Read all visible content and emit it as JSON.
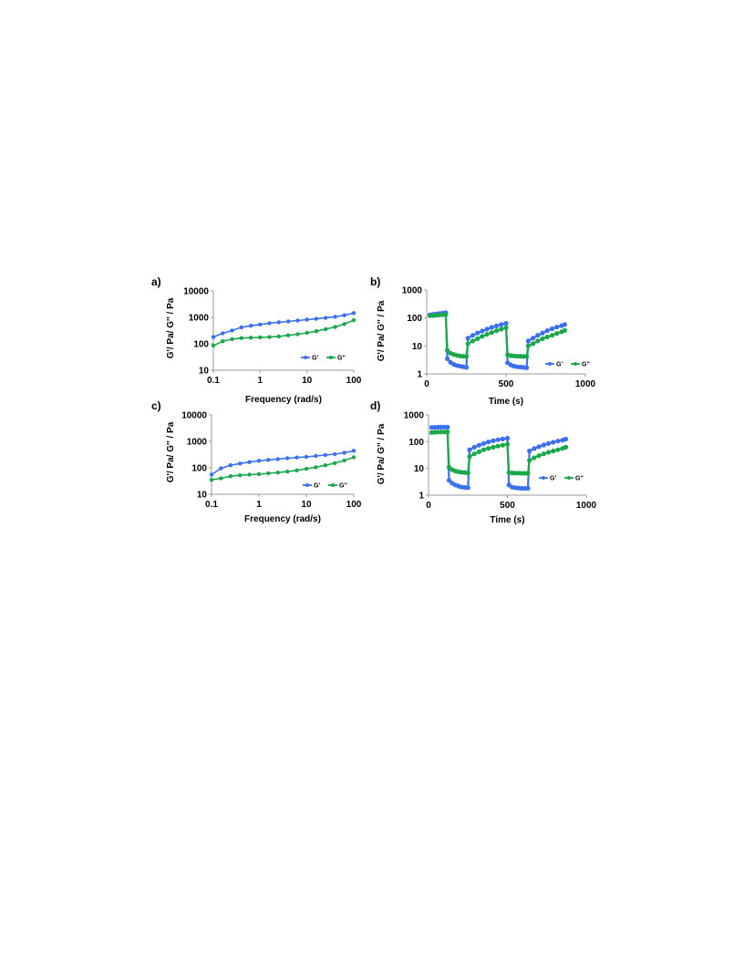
{
  "colors": {
    "Gp": "#3a6ff0",
    "Gpp": "#1aa84a",
    "axis": "#999999"
  },
  "chart_data": [
    {
      "panel": "a)",
      "type": "line",
      "xscale": "log",
      "yscale": "log",
      "xlim": [
        0.1,
        100
      ],
      "ylim": [
        10,
        10000
      ],
      "xticks": [
        "0.1",
        "1",
        "10",
        "100"
      ],
      "yticks": [
        "10",
        "100",
        "1000",
        "10000"
      ],
      "xlabel": "Frequency (rad/s)",
      "ylabel": "G'/ Pa/ G'' / Pa",
      "legend": "bottom-right",
      "x": [
        0.1,
        0.158,
        0.251,
        0.398,
        0.631,
        1,
        1.58,
        2.51,
        3.98,
        6.31,
        10,
        15.8,
        25.1,
        39.8,
        63.1,
        100
      ],
      "series": [
        {
          "name": "G'",
          "color_key": "Gp",
          "values": [
            180,
            250,
            320,
            420,
            480,
            540,
            600,
            650,
            700,
            760,
            820,
            880,
            950,
            1050,
            1200,
            1450
          ]
        },
        {
          "name": "G''",
          "color_key": "Gpp",
          "values": [
            85,
            125,
            150,
            165,
            170,
            175,
            180,
            190,
            210,
            230,
            260,
            300,
            360,
            430,
            560,
            780
          ]
        }
      ]
    },
    {
      "panel": "b)",
      "type": "line",
      "xscale": "linear",
      "yscale": "log",
      "xlim": [
        0,
        1000
      ],
      "ylim": [
        1,
        1000
      ],
      "xticks": [
        "0",
        "500",
        "1000"
      ],
      "yticks": [
        "1",
        "10",
        "100",
        "1000"
      ],
      "xlabel": "Time (s)",
      "ylabel": "G'/ Pa/ G'' / Pa",
      "legend": "bottom-right",
      "series": [
        {
          "name": "G'",
          "color_key": "Gp",
          "segments": [
            {
              "x": [
                20,
                40,
                60,
                80,
                100,
                120
              ],
              "y": [
                130,
                135,
                140,
                145,
                150,
                155
              ]
            },
            {
              "x": [
                130,
                150,
                170,
                190,
                210,
                230,
                250
              ],
              "y": [
                3.5,
                2.6,
                2.2,
                2.0,
                1.9,
                1.8,
                1.7
              ]
            },
            {
              "x": [
                260,
                290,
                320,
                350,
                380,
                410,
                440,
                470,
                500
              ],
              "y": [
                19,
                24,
                29,
                34,
                40,
                46,
                52,
                58,
                64
              ]
            },
            {
              "x": [
                510,
                530,
                550,
                570,
                590,
                610,
                630
              ],
              "y": [
                2.5,
                2.1,
                1.9,
                1.8,
                1.75,
                1.7,
                1.65
              ]
            },
            {
              "x": [
                640,
                670,
                700,
                730,
                760,
                790,
                820,
                850,
                870
              ],
              "y": [
                15,
                19,
                24,
                29,
                35,
                41,
                47,
                53,
                58
              ]
            }
          ]
        },
        {
          "name": "G''",
          "color_key": "Gpp",
          "segments": [
            {
              "x": [
                20,
                40,
                60,
                80,
                100,
                120
              ],
              "y": [
                120,
                122,
                125,
                128,
                130,
                132
              ]
            },
            {
              "x": [
                130,
                150,
                170,
                190,
                210,
                230,
                250
              ],
              "y": [
                7,
                5.5,
                5,
                4.6,
                4.4,
                4.3,
                4.2
              ]
            },
            {
              "x": [
                260,
                290,
                320,
                350,
                380,
                410,
                440,
                470,
                500
              ],
              "y": [
                12,
                15,
                18,
                22,
                26,
                30,
                35,
                40,
                45
              ]
            },
            {
              "x": [
                510,
                530,
                550,
                570,
                590,
                610,
                630
              ],
              "y": [
                4.8,
                4.5,
                4.4,
                4.3,
                4.3,
                4.2,
                4.2
              ]
            },
            {
              "x": [
                640,
                670,
                700,
                730,
                760,
                790,
                820,
                850,
                870
              ],
              "y": [
                10,
                12,
                15,
                18,
                21,
                24,
                28,
                32,
                36
              ]
            }
          ]
        }
      ]
    },
    {
      "panel": "c)",
      "type": "line",
      "xscale": "log",
      "yscale": "log",
      "xlim": [
        0.1,
        100
      ],
      "ylim": [
        10,
        10000
      ],
      "xticks": [
        "0.1",
        "1",
        "10",
        "100"
      ],
      "yticks": [
        "10",
        "100",
        "1000",
        "10000"
      ],
      "xlabel": "Frequency (rad/s)",
      "ylabel": "G'/ Pa/ G'' / Pa",
      "legend": "bottom-right",
      "x": [
        0.1,
        0.158,
        0.251,
        0.398,
        0.631,
        1,
        1.58,
        2.51,
        3.98,
        6.31,
        10,
        15.8,
        25.1,
        39.8,
        63.1,
        100
      ],
      "series": [
        {
          "name": "G'",
          "color_key": "Gp",
          "values": [
            55,
            95,
            125,
            145,
            165,
            185,
            200,
            215,
            230,
            245,
            260,
            280,
            305,
            330,
            370,
            440
          ]
        },
        {
          "name": "G''",
          "color_key": "Gpp",
          "values": [
            35,
            40,
            48,
            52,
            55,
            58,
            62,
            66,
            72,
            80,
            92,
            105,
            125,
            150,
            190,
            250
          ]
        }
      ]
    },
    {
      "panel": "d)",
      "type": "line",
      "xscale": "linear",
      "yscale": "log",
      "xlim": [
        0,
        1000
      ],
      "ylim": [
        1,
        1000
      ],
      "xticks": [
        "0",
        "500",
        "1000"
      ],
      "yticks": [
        "1",
        "10",
        "100",
        "1000"
      ],
      "xlabel": "Time (s)",
      "ylabel": "G'/ Pa/ G'' / Pa",
      "legend": "bottom-right",
      "series": [
        {
          "name": "G'",
          "color_key": "Gp",
          "segments": [
            {
              "x": [
                20,
                40,
                60,
                80,
                100,
                120
              ],
              "y": [
                340,
                345,
                350,
                350,
                350,
                350
              ]
            },
            {
              "x": [
                130,
                150,
                170,
                190,
                210,
                230,
                250
              ],
              "y": [
                3.6,
                2.8,
                2.4,
                2.2,
                2.0,
                1.95,
                1.9
              ]
            },
            {
              "x": [
                260,
                290,
                320,
                350,
                380,
                410,
                440,
                470,
                500
              ],
              "y": [
                50,
                62,
                74,
                86,
                98,
                108,
                118,
                126,
                135
              ]
            },
            {
              "x": [
                510,
                530,
                550,
                570,
                590,
                610,
                630
              ],
              "y": [
                2.4,
                2.0,
                1.9,
                1.85,
                1.8,
                1.8,
                1.8
              ]
            },
            {
              "x": [
                640,
                670,
                700,
                730,
                760,
                790,
                820,
                850,
                870
              ],
              "y": [
                45,
                55,
                65,
                75,
                85,
                95,
                105,
                115,
                125
              ]
            }
          ]
        },
        {
          "name": "G''",
          "color_key": "Gpp",
          "segments": [
            {
              "x": [
                20,
                40,
                60,
                80,
                100,
                120
              ],
              "y": [
                220,
                225,
                228,
                230,
                230,
                230
              ]
            },
            {
              "x": [
                130,
                150,
                170,
                190,
                210,
                230,
                250
              ],
              "y": [
                11,
                9,
                8,
                7.5,
                7.2,
                7.0,
                6.8
              ]
            },
            {
              "x": [
                260,
                290,
                320,
                350,
                380,
                410,
                440,
                470,
                500
              ],
              "y": [
                28,
                35,
                42,
                50,
                56,
                62,
                68,
                74,
                80
              ]
            },
            {
              "x": [
                510,
                530,
                550,
                570,
                590,
                610,
                630
              ],
              "y": [
                7.0,
                6.8,
                6.7,
                6.7,
                6.6,
                6.6,
                6.6
              ]
            },
            {
              "x": [
                640,
                670,
                700,
                730,
                760,
                790,
                820,
                850,
                870
              ],
              "y": [
                20,
                25,
                30,
                35,
                40,
                45,
                50,
                56,
                62
              ]
            }
          ]
        }
      ]
    }
  ]
}
